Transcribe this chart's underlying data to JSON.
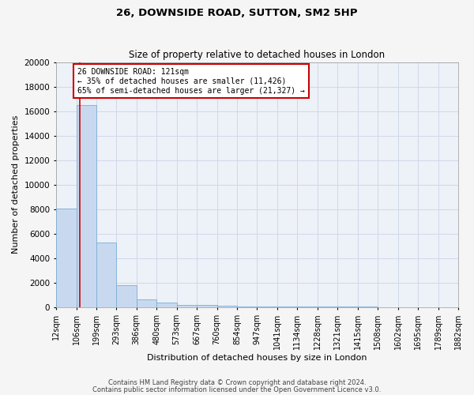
{
  "title": "26, DOWNSIDE ROAD, SUTTON, SM2 5HP",
  "subtitle": "Size of property relative to detached houses in London",
  "xlabel": "Distribution of detached houses by size in London",
  "ylabel": "Number of detached properties",
  "bin_labels": [
    "12sqm",
    "106sqm",
    "199sqm",
    "293sqm",
    "386sqm",
    "480sqm",
    "573sqm",
    "667sqm",
    "760sqm",
    "854sqm",
    "947sqm",
    "1041sqm",
    "1134sqm",
    "1228sqm",
    "1321sqm",
    "1415sqm",
    "1508sqm",
    "1602sqm",
    "1695sqm",
    "1789sqm",
    "1882sqm"
  ],
  "bin_edges": [
    12,
    106,
    199,
    293,
    386,
    480,
    573,
    667,
    760,
    854,
    947,
    1041,
    1134,
    1228,
    1321,
    1415,
    1508,
    1602,
    1695,
    1789,
    1882
  ],
  "bar_heights": [
    8050,
    16500,
    5300,
    1800,
    600,
    350,
    200,
    150,
    100,
    80,
    60,
    50,
    40,
    30,
    25,
    20,
    15,
    12,
    10,
    8
  ],
  "bar_color": "#c8d9ef",
  "bar_edge_color": "#7aadd4",
  "property_size": 121,
  "vline_color": "#cc0000",
  "annotation_text": "26 DOWNSIDE ROAD: 121sqm\n← 35% of detached houses are smaller (11,426)\n65% of semi-detached houses are larger (21,327) →",
  "annotation_box_color": "#ffffff",
  "annotation_border_color": "#cc0000",
  "ylim": [
    0,
    20000
  ],
  "background_color": "#edf1f8",
  "fig_background_color": "#f5f5f5",
  "footer_line1": "Contains HM Land Registry data © Crown copyright and database right 2024.",
  "footer_line2": "Contains public sector information licensed under the Open Government Licence v3.0.",
  "grid_color": "#d0d8e8",
  "title_fontsize": 9.5,
  "subtitle_fontsize": 8.5,
  "tick_fontsize": 7,
  "ylabel_fontsize": 8,
  "xlabel_fontsize": 8,
  "annotation_fontsize": 7,
  "footer_fontsize": 6
}
